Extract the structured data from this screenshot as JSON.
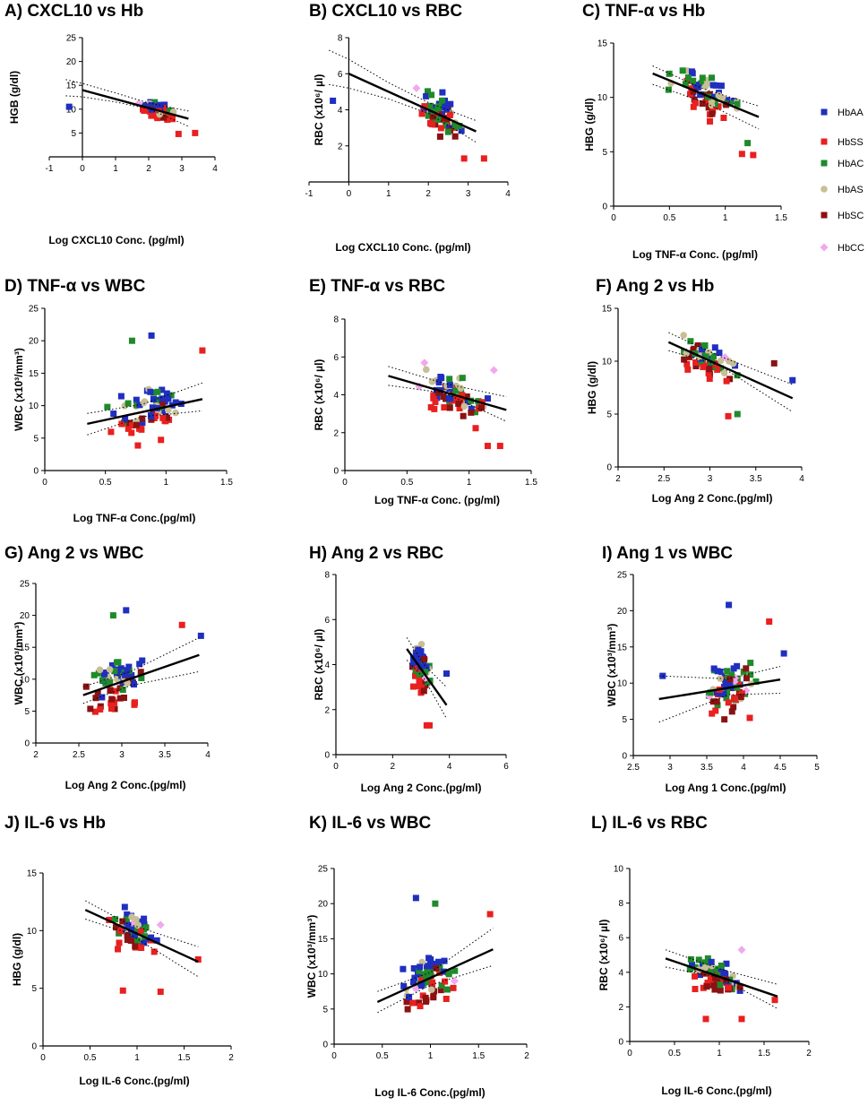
{
  "legend": {
    "items": [
      {
        "label": "HbAA",
        "color": "#1f2fbf",
        "shape": "square"
      },
      {
        "label": "HbSS",
        "color": "#e8201f",
        "shape": "square"
      },
      {
        "label": "HbAC",
        "color": "#1f8a2a",
        "shape": "square"
      },
      {
        "label": "HbAS",
        "color": "#c8bf95",
        "shape": "circle"
      },
      {
        "label": "HbSC",
        "color": "#8a1212",
        "shape": "square"
      },
      {
        "label": "HbCC",
        "color": "#f2a8ee",
        "shape": "diamond"
      }
    ]
  },
  "chart_data": [
    {
      "id": "A",
      "type": "scatter",
      "title": "A) CXCL10 vs Hb",
      "xlabel": "Log CXCL10 Conc. (pg/ml)",
      "ylabel": "HGB (g/dl)",
      "xlim": [
        -1,
        4
      ],
      "ylim": [
        0,
        25
      ],
      "xticks": [
        -1,
        0,
        1,
        2,
        3,
        4
      ],
      "yticks": [
        5,
        10,
        15,
        20,
        25
      ],
      "yaxis_at_zero": true,
      "fit": {
        "x": [
          0,
          3.2
        ],
        "y": [
          14.0,
          8.0
        ]
      },
      "ci_upper": {
        "x": [
          -0.5,
          0,
          1,
          2,
          3.2
        ],
        "y": [
          16.2,
          15.4,
          13.4,
          11.3,
          9.6
        ]
      },
      "ci_lower": {
        "x": [
          -0.5,
          0,
          1,
          2,
          3.2
        ],
        "y": [
          12.8,
          12.6,
          11.5,
          10.1,
          6.4
        ]
      },
      "n": 70,
      "x_center": 2.3,
      "x_spread": 0.4,
      "y_center": 10,
      "y_spread": 1.5,
      "outliers": [
        {
          "g": 0,
          "x": -0.4,
          "y": 10.5
        },
        {
          "g": 1,
          "x": 3.4,
          "y": 5.0
        },
        {
          "g": 1,
          "x": 2.9,
          "y": 4.8
        },
        {
          "g": 5,
          "x": 1.7,
          "y": 11.2
        }
      ]
    },
    {
      "id": "B",
      "type": "scatter",
      "title": "B) CXCL10 vs RBC",
      "xlabel": "Log CXCL10 Conc. (pg/ml)",
      "ylabel": "RBC (x10⁶/ µl)",
      "xlim": [
        -1,
        4
      ],
      "ylim": [
        0,
        8
      ],
      "xticks": [
        -1,
        0,
        1,
        2,
        3,
        4
      ],
      "yticks": [
        2,
        4,
        6,
        8
      ],
      "yaxis_at_zero": true,
      "fit": {
        "x": [
          0,
          3.2
        ],
        "y": [
          6.0,
          2.8
        ]
      },
      "ci_upper": {
        "x": [
          -0.5,
          0,
          1,
          2,
          3.2
        ],
        "y": [
          7.3,
          6.8,
          5.5,
          4.4,
          3.4
        ]
      },
      "ci_lower": {
        "x": [
          -0.5,
          0,
          1,
          2,
          3.2
        ],
        "y": [
          5.4,
          5.2,
          4.6,
          3.8,
          2.2
        ]
      },
      "n": 70,
      "x_center": 2.3,
      "x_spread": 0.4,
      "y_center": 3.9,
      "y_spread": 0.9,
      "outliers": [
        {
          "g": 0,
          "x": -0.4,
          "y": 4.5
        },
        {
          "g": 1,
          "x": 2.9,
          "y": 1.3
        },
        {
          "g": 1,
          "x": 3.4,
          "y": 1.3
        },
        {
          "g": 5,
          "x": 1.7,
          "y": 5.2
        }
      ]
    },
    {
      "id": "C",
      "type": "scatter",
      "title": "C) TNF-α vs Hb",
      "xlabel": "Log TNF-α Conc. (pg/ml)",
      "ylabel": "HBG (g/dl)",
      "xlim": [
        0,
        1.5
      ],
      "ylim": [
        0,
        15
      ],
      "xticks": [
        0,
        0.5,
        1,
        1.5
      ],
      "yticks": [
        0,
        5,
        10,
        15
      ],
      "yaxis_at_zero": false,
      "fit": {
        "x": [
          0.35,
          1.3
        ],
        "y": [
          12.2,
          8.2
        ]
      },
      "ci_upper": {
        "x": [
          0.35,
          0.8,
          1.3
        ],
        "y": [
          12.9,
          10.8,
          9.2
        ]
      },
      "ci_lower": {
        "x": [
          0.35,
          0.8,
          1.3
        ],
        "y": [
          11.2,
          9.6,
          7.1
        ]
      },
      "n": 70,
      "x_center": 0.85,
      "x_spread": 0.24,
      "y_center": 10,
      "y_spread": 1.6,
      "outliers": [
        {
          "g": 1,
          "x": 1.15,
          "y": 4.8
        },
        {
          "g": 1,
          "x": 1.25,
          "y": 4.7
        },
        {
          "g": 2,
          "x": 1.2,
          "y": 5.8
        }
      ]
    },
    {
      "id": "D",
      "type": "scatter",
      "title": "D) TNF-α vs WBC",
      "xlabel": "Log TNF-α Conc.(pg/ml)",
      "ylabel": "WBC (x10³/mm³)",
      "xlim": [
        0,
        1.5
      ],
      "ylim": [
        0,
        25
      ],
      "xticks": [
        0,
        0.5,
        1,
        1.5
      ],
      "yticks": [
        0,
        5,
        10,
        15,
        20,
        25
      ],
      "yaxis_at_zero": false,
      "fit": {
        "x": [
          0.35,
          1.3
        ],
        "y": [
          7.2,
          11.0
        ]
      },
      "ci_upper": {
        "x": [
          0.35,
          0.8,
          1.3
        ],
        "y": [
          8.8,
          10.2,
          13.5
        ]
      },
      "ci_lower": {
        "x": [
          0.35,
          0.8,
          1.3
        ],
        "y": [
          5.5,
          8.3,
          9.2
        ]
      },
      "n": 70,
      "x_center": 0.85,
      "x_spread": 0.24,
      "y_center": 9,
      "y_spread": 3.5,
      "outliers": [
        {
          "g": 0,
          "x": 0.88,
          "y": 20.8
        },
        {
          "g": 2,
          "x": 0.72,
          "y": 20.0
        },
        {
          "g": 1,
          "x": 1.3,
          "y": 18.5
        }
      ]
    },
    {
      "id": "E",
      "type": "scatter",
      "title": "E) TNF-α vs RBC",
      "xlabel": "Log TNF-α Conc. (pg/ml)",
      "ylabel": "RBC (x10⁶/ µl)",
      "xlim": [
        0,
        1.5
      ],
      "ylim": [
        0,
        8
      ],
      "xticks": [
        0,
        0.5,
        1,
        1.5
      ],
      "yticks": [
        0,
        2,
        4,
        6,
        8
      ],
      "yaxis_at_zero": false,
      "fit": {
        "x": [
          0.35,
          1.3
        ],
        "y": [
          5.0,
          3.2
        ]
      },
      "ci_upper": {
        "x": [
          0.35,
          0.8,
          1.3
        ],
        "y": [
          5.5,
          4.6,
          3.9
        ]
      },
      "ci_lower": {
        "x": [
          0.35,
          0.8,
          1.3
        ],
        "y": [
          4.5,
          4.1,
          2.6
        ]
      },
      "n": 70,
      "x_center": 0.85,
      "x_spread": 0.24,
      "y_center": 3.8,
      "y_spread": 1.0,
      "outliers": [
        {
          "g": 1,
          "x": 1.15,
          "y": 1.3
        },
        {
          "g": 1,
          "x": 1.25,
          "y": 1.3
        },
        {
          "g": 5,
          "x": 1.2,
          "y": 5.3
        }
      ]
    },
    {
      "id": "F",
      "type": "scatter",
      "title": "F) Ang 2 vs Hb",
      "xlabel": "Log Ang 2 Conc.(pg/ml)",
      "ylabel": "HBG (g/dl)",
      "xlim": [
        2,
        4
      ],
      "ylim": [
        0,
        15
      ],
      "xticks": [
        2,
        2.5,
        3,
        3.5,
        4
      ],
      "yticks": [
        0,
        5,
        10,
        15
      ],
      "yaxis_at_zero": false,
      "fit": {
        "x": [
          2.55,
          3.9
        ],
        "y": [
          11.8,
          6.5
        ]
      },
      "ci_upper": {
        "x": [
          2.55,
          3.1,
          3.9
        ],
        "y": [
          12.7,
          10.5,
          7.8
        ]
      },
      "ci_lower": {
        "x": [
          2.55,
          3.1,
          3.9
        ],
        "y": [
          11.0,
          9.6,
          5.2
        ]
      },
      "n": 70,
      "x_center": 2.95,
      "x_spread": 0.25,
      "y_center": 10.2,
      "y_spread": 1.5,
      "outliers": [
        {
          "g": 1,
          "x": 3.2,
          "y": 4.8
        },
        {
          "g": 2,
          "x": 3.3,
          "y": 5.0
        },
        {
          "g": 0,
          "x": 3.9,
          "y": 8.2
        },
        {
          "g": 4,
          "x": 3.7,
          "y": 9.8
        }
      ]
    },
    {
      "id": "G",
      "type": "scatter",
      "title": "G) Ang 2 vs WBC",
      "xlabel": "Log Ang 2 Conc.(pg/ml)",
      "ylabel": "WBC (x10³/mm³)",
      "xlim": [
        2,
        4
      ],
      "ylim": [
        0,
        25
      ],
      "xticks": [
        2,
        2.5,
        3,
        3.5,
        4
      ],
      "yticks": [
        0,
        5,
        10,
        15,
        20,
        25
      ],
      "yaxis_at_zero": false,
      "fit": {
        "x": [
          2.55,
          3.9
        ],
        "y": [
          7.5,
          13.8
        ]
      },
      "ci_upper": {
        "x": [
          2.55,
          3.1,
          3.9
        ],
        "y": [
          8.8,
          11.2,
          16.5
        ]
      },
      "ci_lower": {
        "x": [
          2.55,
          3.1,
          3.9
        ],
        "y": [
          6.2,
          9.0,
          11.2
        ]
      },
      "n": 70,
      "x_center": 2.95,
      "x_spread": 0.25,
      "y_center": 9,
      "y_spread": 3.5,
      "outliers": [
        {
          "g": 0,
          "x": 3.05,
          "y": 20.8
        },
        {
          "g": 2,
          "x": 2.9,
          "y": 20.0
        },
        {
          "g": 1,
          "x": 3.7,
          "y": 18.5
        },
        {
          "g": 0,
          "x": 3.92,
          "y": 16.8
        }
      ]
    },
    {
      "id": "H",
      "type": "scatter",
      "title": "H) Ang 2 vs RBC",
      "xlabel": "Log Ang 2 Conc.(pg/ml)",
      "ylabel": "RBC (x10⁶/ µl)",
      "xlim": [
        0,
        6
      ],
      "ylim": [
        0,
        8
      ],
      "xticks": [
        0,
        2,
        4,
        6
      ],
      "yticks": [
        0,
        2,
        4,
        6,
        8
      ],
      "yaxis_at_zero": false,
      "fit": {
        "x": [
          2.5,
          3.9
        ],
        "y": [
          4.7,
          2.2
        ]
      },
      "ci_upper": {
        "x": [
          2.5,
          3.1,
          3.9
        ],
        "y": [
          5.2,
          4.0,
          3.0
        ]
      },
      "ci_lower": {
        "x": [
          2.5,
          3.1,
          3.9
        ],
        "y": [
          4.2,
          3.4,
          1.6
        ]
      },
      "n": 70,
      "x_center": 3.0,
      "x_spread": 0.25,
      "y_center": 3.8,
      "y_spread": 1.0,
      "outliers": [
        {
          "g": 1,
          "x": 3.2,
          "y": 1.3
        },
        {
          "g": 1,
          "x": 3.3,
          "y": 1.3
        },
        {
          "g": 0,
          "x": 3.9,
          "y": 3.6
        }
      ]
    },
    {
      "id": "I",
      "type": "scatter",
      "title": "I) Ang 1 vs WBC",
      "xlabel": "Log Ang 1 Conc.(pg/ml)",
      "ylabel": "WBC (x10³/mm³)",
      "xlim": [
        2.5,
        5
      ],
      "ylim": [
        0,
        25
      ],
      "xticks": [
        2.5,
        3,
        3.5,
        4,
        4.5,
        5
      ],
      "yticks": [
        0,
        5,
        10,
        15,
        20,
        25
      ],
      "yaxis_at_zero": false,
      "fit": {
        "x": [
          2.85,
          4.5
        ],
        "y": [
          7.8,
          10.5
        ]
      },
      "ci_upper": {
        "x": [
          2.85,
          3.8,
          4.5
        ],
        "y": [
          11.0,
          10.6,
          12.3
        ]
      },
      "ci_lower": {
        "x": [
          2.85,
          3.8,
          4.5
        ],
        "y": [
          4.6,
          8.4,
          8.6
        ]
      },
      "n": 70,
      "x_center": 3.85,
      "x_spread": 0.25,
      "y_center": 9,
      "y_spread": 3.5,
      "outliers": [
        {
          "g": 0,
          "x": 2.9,
          "y": 11.0
        },
        {
          "g": 0,
          "x": 3.8,
          "y": 20.8
        },
        {
          "g": 1,
          "x": 4.35,
          "y": 18.5
        },
        {
          "g": 0,
          "x": 4.55,
          "y": 14.1
        }
      ]
    },
    {
      "id": "J",
      "type": "scatter",
      "title": "J) IL-6 vs Hb",
      "xlabel": "Log IL-6 Conc.(pg/ml)",
      "ylabel": "HBG (g/dl)",
      "xlim": [
        0,
        2
      ],
      "ylim": [
        0,
        15
      ],
      "xticks": [
        0,
        0.5,
        1,
        1.5,
        2
      ],
      "yticks": [
        0,
        5,
        10,
        15
      ],
      "yaxis_at_zero": false,
      "fit": {
        "x": [
          0.45,
          1.65
        ],
        "y": [
          11.8,
          7.3
        ]
      },
      "ci_upper": {
        "x": [
          0.45,
          0.9,
          1.65
        ],
        "y": [
          12.6,
          10.6,
          8.6
        ]
      },
      "ci_lower": {
        "x": [
          0.45,
          0.9,
          1.65
        ],
        "y": [
          11.0,
          9.8,
          6.0
        ]
      },
      "n": 70,
      "x_center": 0.95,
      "x_spread": 0.22,
      "y_center": 10,
      "y_spread": 1.5,
      "outliers": [
        {
          "g": 1,
          "x": 0.85,
          "y": 4.8
        },
        {
          "g": 1,
          "x": 1.25,
          "y": 4.7
        },
        {
          "g": 1,
          "x": 1.65,
          "y": 7.5
        },
        {
          "g": 5,
          "x": 1.25,
          "y": 10.5
        }
      ]
    },
    {
      "id": "K",
      "type": "scatter",
      "title": "K) IL-6 vs WBC",
      "xlabel": "Log IL-6 Conc.(pg/ml)",
      "ylabel": "WBC (x10³/mm³)",
      "xlim": [
        0,
        2
      ],
      "ylim": [
        0,
        25
      ],
      "xticks": [
        0,
        0.5,
        1,
        1.5,
        2
      ],
      "yticks": [
        0,
        5,
        10,
        15,
        20,
        25
      ],
      "yaxis_at_zero": false,
      "fit": {
        "x": [
          0.45,
          1.65
        ],
        "y": [
          6.0,
          13.5
        ]
      },
      "ci_upper": {
        "x": [
          0.45,
          1.0,
          1.65
        ],
        "y": [
          7.5,
          10.2,
          16.5
        ]
      },
      "ci_lower": {
        "x": [
          0.45,
          1.0,
          1.65
        ],
        "y": [
          4.5,
          8.4,
          11.2
        ]
      },
      "n": 70,
      "x_center": 0.95,
      "x_spread": 0.22,
      "y_center": 9,
      "y_spread": 3.5,
      "outliers": [
        {
          "g": 0,
          "x": 0.85,
          "y": 20.8
        },
        {
          "g": 2,
          "x": 1.05,
          "y": 20.0
        },
        {
          "g": 1,
          "x": 1.62,
          "y": 18.5
        },
        {
          "g": 5,
          "x": 1.25,
          "y": 9.0
        }
      ]
    },
    {
      "id": "L",
      "type": "scatter",
      "title": "L) IL-6 vs RBC",
      "xlabel": "Log IL-6 Conc.(pg/ml)",
      "ylabel": "RBC (x10⁶/ µl)",
      "xlim": [
        0,
        2
      ],
      "ylim": [
        0,
        10
      ],
      "xticks": [
        0,
        0.5,
        1,
        1.5,
        2
      ],
      "yticks": [
        0,
        2,
        4,
        6,
        8,
        10
      ],
      "yaxis_at_zero": false,
      "fit": {
        "x": [
          0.4,
          1.65
        ],
        "y": [
          4.8,
          2.6
        ]
      },
      "ci_upper": {
        "x": [
          0.4,
          1.0,
          1.65
        ],
        "y": [
          5.3,
          4.2,
          3.3
        ]
      },
      "ci_lower": {
        "x": [
          0.4,
          1.0,
          1.65
        ],
        "y": [
          4.3,
          3.7,
          1.9
        ]
      },
      "n": 70,
      "x_center": 0.95,
      "x_spread": 0.22,
      "y_center": 3.9,
      "y_spread": 0.9,
      "outliers": [
        {
          "g": 1,
          "x": 0.85,
          "y": 1.3
        },
        {
          "g": 1,
          "x": 1.25,
          "y": 1.3
        },
        {
          "g": 5,
          "x": 1.25,
          "y": 5.3
        },
        {
          "g": 1,
          "x": 1.62,
          "y": 2.4
        }
      ]
    }
  ]
}
